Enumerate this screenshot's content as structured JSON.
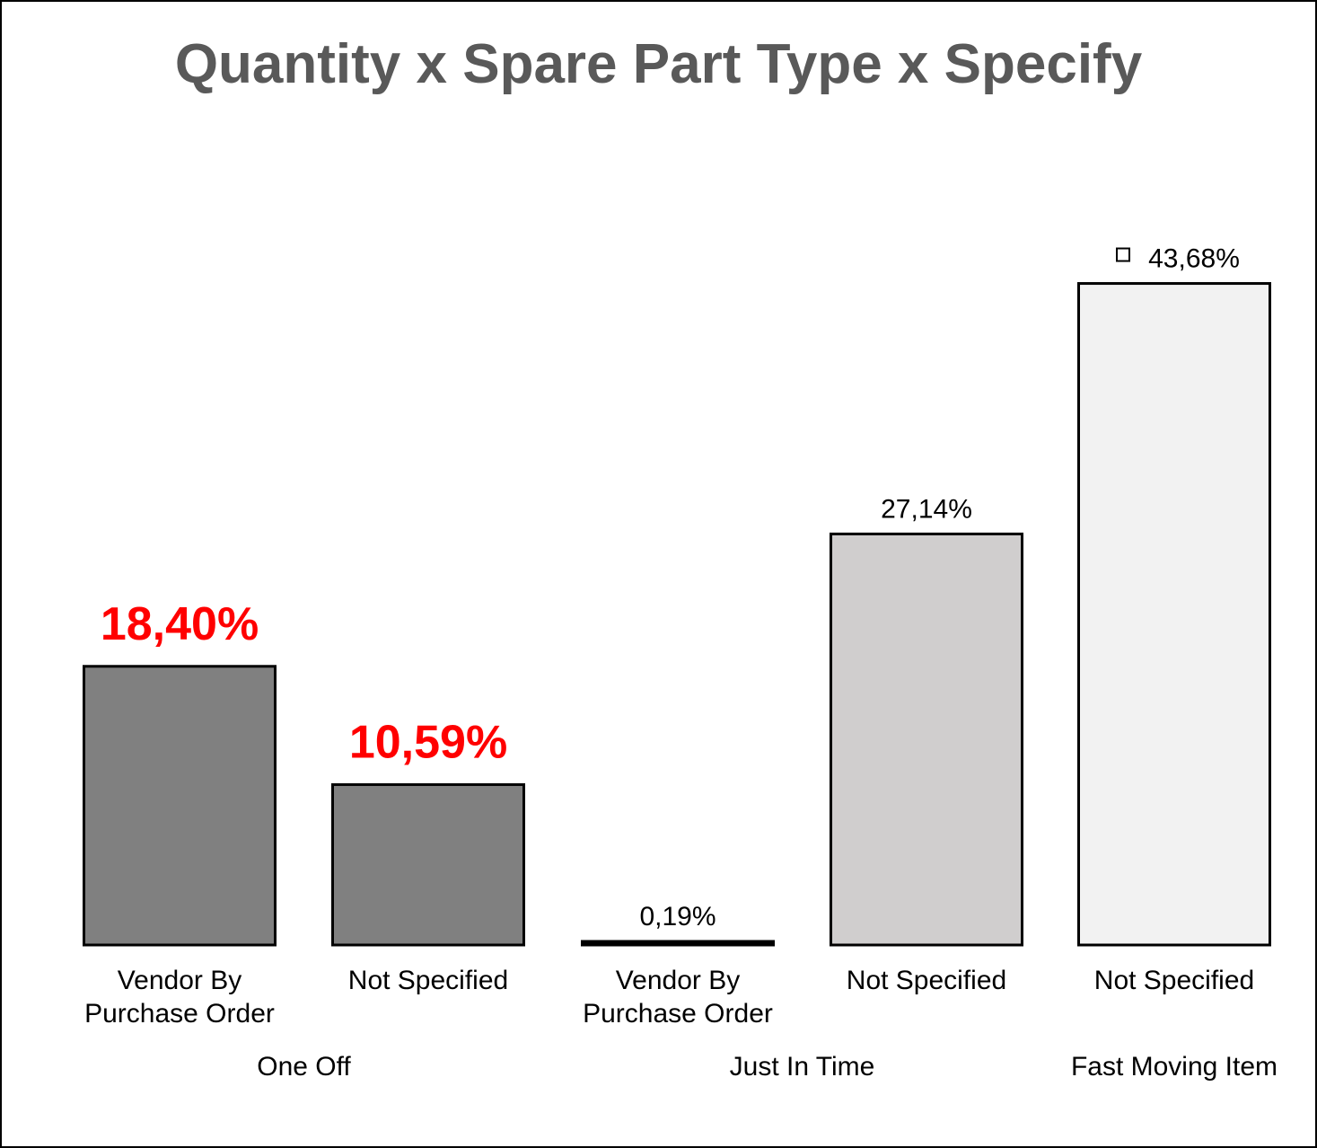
{
  "chart_data": {
    "type": "bar",
    "title": "Quantity x Spare Part Type x Specify",
    "xlabel": "",
    "ylabel": "",
    "ylim": [
      0,
      50
    ],
    "grid": false,
    "legend": "none",
    "groups": [
      {
        "label": "One Off",
        "bars": [
          0,
          1
        ]
      },
      {
        "label": "Just In Time",
        "bars": [
          2,
          3
        ]
      },
      {
        "label": "Fast Moving Item",
        "bars": [
          4
        ]
      }
    ],
    "bars": [
      {
        "label": [
          "Vendor By",
          "Purchase Order"
        ],
        "value": 18.4,
        "value_text": "18,40%",
        "color": "#808080",
        "highlight": true
      },
      {
        "label": [
          "Not Specified"
        ],
        "value": 10.59,
        "value_text": "10,59%",
        "color": "#808080",
        "highlight": true
      },
      {
        "label": [
          "Vendor By",
          "Purchase Order"
        ],
        "value": 0.19,
        "value_text": "0,19%",
        "color": "#000000",
        "highlight": false
      },
      {
        "label": [
          "Not Specified"
        ],
        "value": 27.14,
        "value_text": "27,14%",
        "color": "#d0cece",
        "highlight": false
      },
      {
        "label": [
          "Not Specified"
        ],
        "value": 43.68,
        "value_text": "43,68%",
        "color": "#f2f2f2",
        "highlight": false
      }
    ],
    "highlight_color": "#ff0000",
    "title_color": "#595959"
  }
}
